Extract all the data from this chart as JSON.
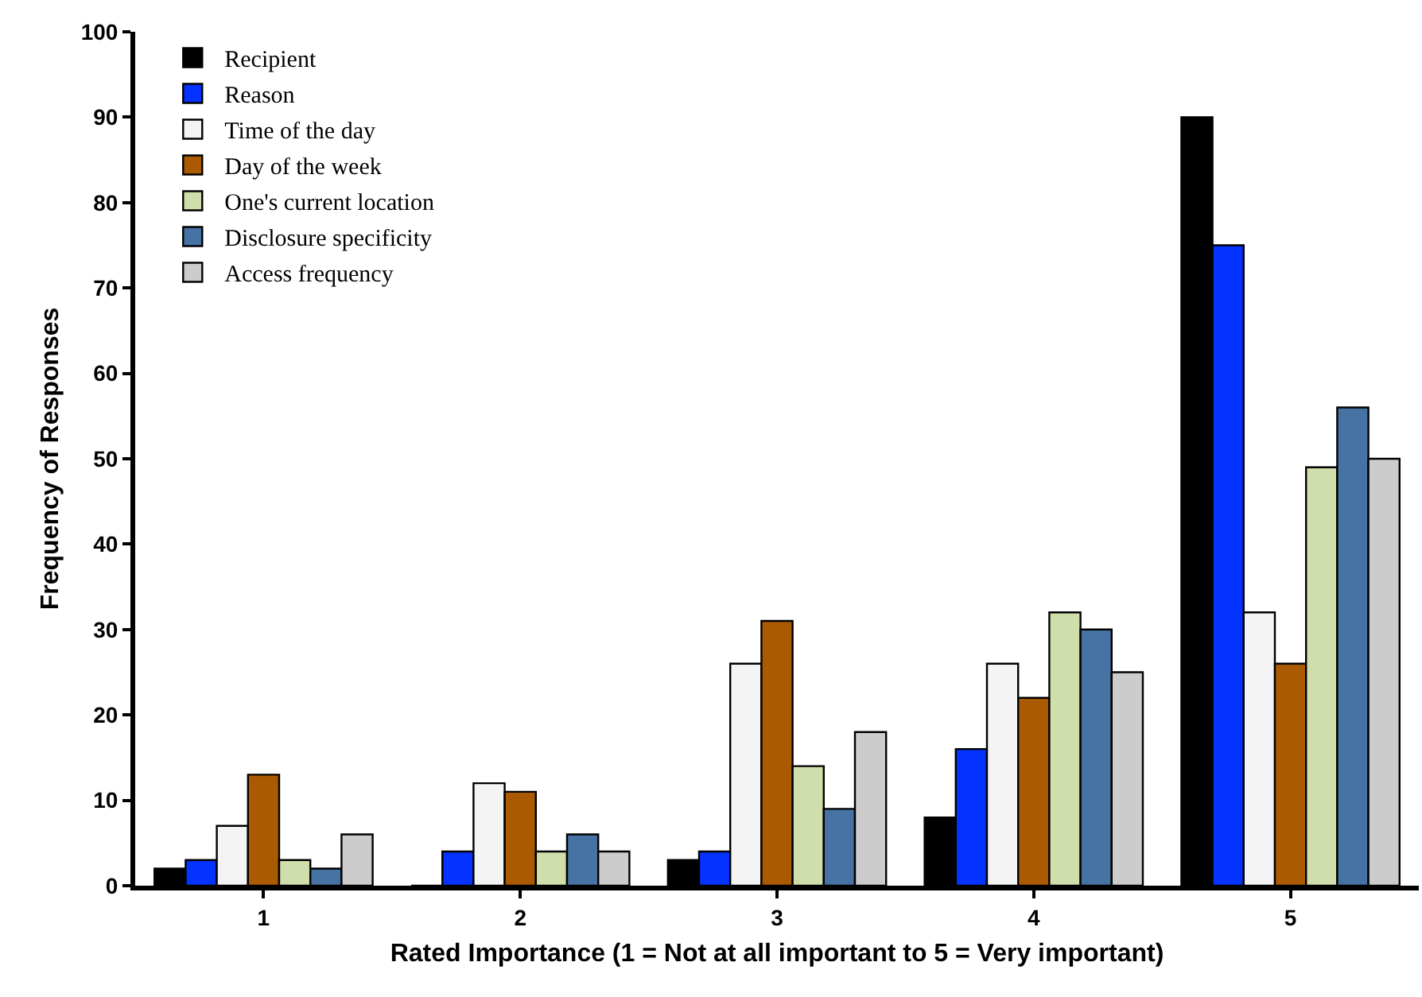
{
  "chart_data": {
    "type": "bar",
    "xlabel": "Rated Importance (1 = Not at all important to 5 = Very important)",
    "ylabel": "Frequency of Responses",
    "categories": [
      "1",
      "2",
      "3",
      "4",
      "5"
    ],
    "series": [
      {
        "name": "Recipient",
        "color": "#000000",
        "values": [
          2,
          0,
          3,
          8,
          90
        ]
      },
      {
        "name": "Reason",
        "color": "#0433ff",
        "values": [
          3,
          4,
          4,
          16,
          75
        ]
      },
      {
        "name": "Time of the day",
        "color": "#f4f4f4",
        "values": [
          7,
          12,
          26,
          26,
          32
        ]
      },
      {
        "name": "Day of the week",
        "color": "#aa5a00",
        "values": [
          13,
          11,
          31,
          22,
          26
        ]
      },
      {
        "name": "One's current location",
        "color": "#cfdeaa",
        "values": [
          3,
          4,
          14,
          32,
          49
        ]
      },
      {
        "name": "Disclosure specificity",
        "color": "#4673a3",
        "values": [
          2,
          6,
          9,
          30,
          56
        ]
      },
      {
        "name": "Access frequency",
        "color": "#cccccc",
        "values": [
          6,
          4,
          18,
          25,
          50
        ]
      }
    ],
    "ylim": [
      0,
      100
    ],
    "yticks": [
      0,
      10,
      20,
      30,
      40,
      50,
      60,
      70,
      80,
      90,
      100
    ],
    "grid": false,
    "legend": "top left"
  }
}
